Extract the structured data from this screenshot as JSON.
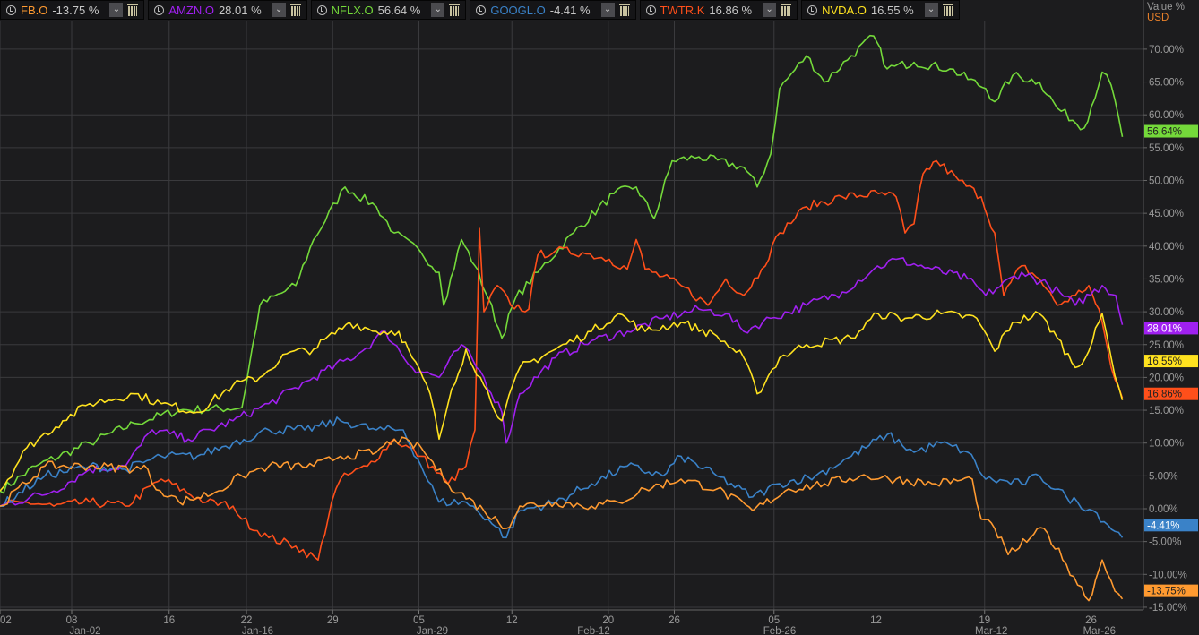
{
  "axis_header": {
    "value_label": "Value %",
    "currency": "USD"
  },
  "legend": [
    {
      "symbol": "FB.O",
      "value": "-13.75 %",
      "color": "#ff9a30"
    },
    {
      "symbol": "AMZN.O",
      "value": "28.01 %",
      "color": "#a020f0"
    },
    {
      "symbol": "NFLX.O",
      "value": "56.64 %",
      "color": "#74d93a"
    },
    {
      "symbol": "GOOGL.O",
      "value": "-4.41 %",
      "color": "#3a82c8"
    },
    {
      "symbol": "TWTR.K",
      "value": "16.86 %",
      "color": "#ff4f1a"
    },
    {
      "symbol": "NVDA.O",
      "value": "16.55 %",
      "color": "#ffe21f"
    }
  ],
  "chart_data": {
    "type": "line",
    "title": "",
    "ylabel": "Value %",
    "xlim": [
      0,
      101
    ],
    "ylim": [
      -15.5,
      73
    ],
    "grid": true,
    "y_ticks": [
      70,
      65,
      60,
      55,
      50,
      45,
      40,
      35,
      30,
      25,
      20,
      15,
      10,
      5,
      0,
      -5,
      -10,
      -15
    ],
    "y_tick_labels": [
      "70.00%",
      "65.00%",
      "60.00%",
      "55.00%",
      "50.00%",
      "45.00%",
      "40.00%",
      "35.00%",
      "30.00%",
      "25.00%",
      "20.00%",
      "15.00%",
      "10.00%",
      "5.00%",
      "0.00%",
      "-5.00%",
      "-10.00%",
      "-15.00%"
    ],
    "x_ticks": [
      {
        "x": 0,
        "label": "02"
      },
      {
        "x": 6.4,
        "label": "08"
      },
      {
        "x": 15.1,
        "label": "16"
      },
      {
        "x": 22,
        "label": "22"
      },
      {
        "x": 29.7,
        "label": "29"
      },
      {
        "x": 37.4,
        "label": "05"
      },
      {
        "x": 45.7,
        "label": "12"
      },
      {
        "x": 54.3,
        "label": "20"
      },
      {
        "x": 60.2,
        "label": "26"
      },
      {
        "x": 69.1,
        "label": "05"
      },
      {
        "x": 78.2,
        "label": "12"
      },
      {
        "x": 87.9,
        "label": "19"
      },
      {
        "x": 97.4,
        "label": "26"
      }
    ],
    "x_period_labels": [
      {
        "x": 7.6,
        "label": "Jan-02"
      },
      {
        "x": 23,
        "label": "Jan-16"
      },
      {
        "x": 38.6,
        "label": "Jan-29"
      },
      {
        "x": 53,
        "label": "Feb-12"
      },
      {
        "x": 69.6,
        "label": "Feb-26"
      },
      {
        "x": 88.5,
        "label": "Mar-12"
      },
      {
        "x": 99.6,
        "label": "Mar-26"
      }
    ],
    "series": [
      {
        "name": "NFLX.O",
        "color": "#74d93a",
        "last_label": "56.64%",
        "last": 56.64,
        "points": [
          [
            0,
            2.7
          ],
          [
            3.2,
            6.5
          ],
          [
            8,
            10
          ],
          [
            12,
            13
          ],
          [
            16,
            15
          ],
          [
            21.6,
            15.4
          ],
          [
            23.2,
            31
          ],
          [
            26.4,
            34
          ],
          [
            28,
            41
          ],
          [
            30.8,
            49
          ],
          [
            33.6,
            46
          ],
          [
            35.2,
            42
          ],
          [
            37.6,
            39
          ],
          [
            39.2,
            36
          ],
          [
            39.6,
            31
          ],
          [
            41.2,
            41
          ],
          [
            42.4,
            37
          ],
          [
            43.6,
            32
          ],
          [
            44.8,
            26
          ],
          [
            46,
            32
          ],
          [
            48,
            36
          ],
          [
            51.2,
            42
          ],
          [
            54.8,
            48
          ],
          [
            56.8,
            49
          ],
          [
            58.4,
            44.2
          ],
          [
            60,
            53
          ],
          [
            62.4,
            53.6
          ],
          [
            66.4,
            52
          ],
          [
            67.6,
            49
          ],
          [
            68.8,
            54
          ],
          [
            69.6,
            64
          ],
          [
            72,
            69
          ],
          [
            73.6,
            65
          ],
          [
            76,
            69
          ],
          [
            78,
            72
          ],
          [
            79.2,
            67
          ],
          [
            81.6,
            68
          ],
          [
            84.8,
            67
          ],
          [
            88,
            64
          ],
          [
            88.8,
            62
          ],
          [
            90.4,
            66
          ],
          [
            92.8,
            65
          ],
          [
            94.4,
            61
          ],
          [
            96.8,
            58
          ],
          [
            98.4,
            66.5
          ],
          [
            99.2,
            64.5
          ],
          [
            100.2,
            56.64
          ]
        ]
      },
      {
        "name": "TWTR.K",
        "color": "#ff4f1a",
        "last_label": "16.86%",
        "last": 16.86,
        "points": [
          [
            0,
            0.4
          ],
          [
            2.4,
            1
          ],
          [
            4.8,
            0.4
          ],
          [
            8,
            1
          ],
          [
            11.2,
            0.4
          ],
          [
            14.4,
            4.5
          ],
          [
            18.4,
            1
          ],
          [
            20.8,
            0.4
          ],
          [
            21.6,
            -1.6
          ],
          [
            24,
            -4.4
          ],
          [
            26.4,
            -5.7
          ],
          [
            28.4,
            -7.8
          ],
          [
            29.6,
            1
          ],
          [
            30.4,
            4.5
          ],
          [
            32.8,
            6.5
          ],
          [
            35.2,
            10.6
          ],
          [
            37.6,
            8
          ],
          [
            40,
            3.8
          ],
          [
            41.6,
            6.5
          ],
          [
            42.4,
            12
          ],
          [
            42.8,
            42.7
          ],
          [
            43.2,
            30
          ],
          [
            44.4,
            34
          ],
          [
            45.6,
            31
          ],
          [
            47.2,
            30.4
          ],
          [
            48,
            38.6
          ],
          [
            49.6,
            39.3
          ],
          [
            52,
            39
          ],
          [
            54.4,
            38
          ],
          [
            56,
            36.5
          ],
          [
            56.8,
            41
          ],
          [
            57.6,
            36.5
          ],
          [
            60.8,
            34
          ],
          [
            63.2,
            31
          ],
          [
            64.8,
            35
          ],
          [
            66.4,
            32.5
          ],
          [
            68,
            36.5
          ],
          [
            69.6,
            42
          ],
          [
            72,
            46
          ],
          [
            75.2,
            47.5
          ],
          [
            78.4,
            48
          ],
          [
            80,
            47.5
          ],
          [
            80.8,
            42
          ],
          [
            81.6,
            43.4
          ],
          [
            82.4,
            51
          ],
          [
            83.6,
            53
          ],
          [
            85.6,
            50
          ],
          [
            87.6,
            47.5
          ],
          [
            88.8,
            42
          ],
          [
            89.6,
            32.5
          ],
          [
            91.2,
            37
          ],
          [
            92.8,
            35
          ],
          [
            94.4,
            31
          ],
          [
            96,
            32.5
          ],
          [
            97.2,
            34
          ],
          [
            98.4,
            28.4
          ],
          [
            99.2,
            21.5
          ],
          [
            100.2,
            16.86
          ]
        ]
      },
      {
        "name": "AMZN.O",
        "color": "#a020f0",
        "last_label": "28.01%",
        "last": 28.01,
        "points": [
          [
            0,
            0.4
          ],
          [
            4.8,
            2.7
          ],
          [
            8,
            6
          ],
          [
            11.2,
            6.5
          ],
          [
            13.6,
            12
          ],
          [
            16.8,
            10.6
          ],
          [
            20.8,
            13.4
          ],
          [
            24,
            16
          ],
          [
            28,
            20
          ],
          [
            32,
            23.6
          ],
          [
            34.4,
            27
          ],
          [
            36.8,
            21.5
          ],
          [
            39.2,
            20
          ],
          [
            41.2,
            25
          ],
          [
            43.2,
            20
          ],
          [
            44.8,
            14.7
          ],
          [
            45.2,
            10
          ],
          [
            46.4,
            17.5
          ],
          [
            49.6,
            23
          ],
          [
            52.8,
            25.6
          ],
          [
            56,
            27
          ],
          [
            59.2,
            29
          ],
          [
            62.4,
            30.4
          ],
          [
            64.8,
            29.7
          ],
          [
            66.4,
            27
          ],
          [
            68.8,
            29
          ],
          [
            72,
            31
          ],
          [
            75.2,
            33
          ],
          [
            78,
            36.5
          ],
          [
            80,
            38
          ],
          [
            83.2,
            36.5
          ],
          [
            86.4,
            35
          ],
          [
            88,
            32.5
          ],
          [
            91.2,
            36
          ],
          [
            93.6,
            34
          ],
          [
            96,
            31
          ],
          [
            98.4,
            34
          ],
          [
            99.6,
            32.5
          ],
          [
            100.2,
            28.01
          ]
        ]
      },
      {
        "name": "NVDA.O",
        "color": "#ffe21f",
        "last_label": "16.55%",
        "last": 16.55,
        "points": [
          [
            0,
            2.7
          ],
          [
            2.4,
            9.3
          ],
          [
            5.6,
            13.4
          ],
          [
            8,
            16
          ],
          [
            12,
            17.5
          ],
          [
            14.4,
            16
          ],
          [
            17.6,
            14.7
          ],
          [
            20.8,
            18.8
          ],
          [
            23.2,
            20
          ],
          [
            25.6,
            23.6
          ],
          [
            28,
            24.3
          ],
          [
            31.2,
            28.4
          ],
          [
            33.6,
            27
          ],
          [
            35.6,
            27
          ],
          [
            36.8,
            23
          ],
          [
            38.4,
            17.5
          ],
          [
            39.2,
            10.6
          ],
          [
            40,
            16
          ],
          [
            41.6,
            24.3
          ],
          [
            43.2,
            18.8
          ],
          [
            44.8,
            13.4
          ],
          [
            46.4,
            21.5
          ],
          [
            49.6,
            24.3
          ],
          [
            52.8,
            27
          ],
          [
            55.2,
            29.7
          ],
          [
            57.6,
            27
          ],
          [
            60.8,
            28.4
          ],
          [
            64,
            26.3
          ],
          [
            66.4,
            23
          ],
          [
            67.6,
            17.5
          ],
          [
            69.6,
            23
          ],
          [
            72,
            25
          ],
          [
            76,
            26
          ],
          [
            78.4,
            29.7
          ],
          [
            80.8,
            29
          ],
          [
            84,
            29.7
          ],
          [
            87.2,
            29
          ],
          [
            88.8,
            24
          ],
          [
            90.4,
            28.4
          ],
          [
            92.8,
            29.7
          ],
          [
            94.4,
            26
          ],
          [
            96,
            21.5
          ],
          [
            97.2,
            24
          ],
          [
            98.4,
            29.7
          ],
          [
            99.2,
            23
          ],
          [
            100.2,
            16.55
          ]
        ]
      },
      {
        "name": "GOOGL.O",
        "color": "#3a82c8",
        "last_label": "-4.41%",
        "last": -4.41,
        "points": [
          [
            0,
            0.4
          ],
          [
            4,
            5
          ],
          [
            8,
            6.5
          ],
          [
            11.2,
            6
          ],
          [
            14.4,
            8
          ],
          [
            17.6,
            8
          ],
          [
            20.8,
            10
          ],
          [
            24,
            12
          ],
          [
            27.2,
            12
          ],
          [
            30.4,
            13.4
          ],
          [
            33.6,
            12
          ],
          [
            36,
            12
          ],
          [
            37.6,
            6.5
          ],
          [
            39.2,
            1
          ],
          [
            41.6,
            1
          ],
          [
            43.6,
            -1.6
          ],
          [
            45.2,
            -4.4
          ],
          [
            46.4,
            -0.3
          ],
          [
            49.6,
            1
          ],
          [
            52.8,
            3.8
          ],
          [
            56,
            6.5
          ],
          [
            59.2,
            5
          ],
          [
            60.8,
            8
          ],
          [
            64,
            5
          ],
          [
            67.2,
            1.8
          ],
          [
            69.6,
            3.8
          ],
          [
            72.8,
            5
          ],
          [
            76,
            8
          ],
          [
            79.2,
            11.3
          ],
          [
            81.6,
            8.6
          ],
          [
            84,
            10
          ],
          [
            86.4,
            8.6
          ],
          [
            88,
            4.5
          ],
          [
            91.2,
            3.8
          ],
          [
            92.8,
            5
          ],
          [
            95.2,
            1.8
          ],
          [
            97.6,
            -0.3
          ],
          [
            100.2,
            -4.41
          ]
        ]
      },
      {
        "name": "FB.O",
        "color": "#ff9a30",
        "last_label": "-13.75%",
        "last": -13.75,
        "points": [
          [
            0,
            0.4
          ],
          [
            4,
            6.5
          ],
          [
            8,
            6.5
          ],
          [
            13.2,
            6
          ],
          [
            13.6,
            3.8
          ],
          [
            16,
            1
          ],
          [
            19.2,
            2.5
          ],
          [
            21.6,
            5
          ],
          [
            24,
            6.5
          ],
          [
            28,
            6.5
          ],
          [
            30.4,
            8
          ],
          [
            33.6,
            8.6
          ],
          [
            35.2,
            10.6
          ],
          [
            37.6,
            9.3
          ],
          [
            40,
            3.8
          ],
          [
            43.2,
            -0.3
          ],
          [
            45.2,
            -3
          ],
          [
            46.4,
            0.4
          ],
          [
            49.6,
            1
          ],
          [
            52.8,
            0.4
          ],
          [
            55.2,
            1
          ],
          [
            57.6,
            3
          ],
          [
            60.8,
            4.5
          ],
          [
            64,
            3
          ],
          [
            67.2,
            -0.3
          ],
          [
            70.4,
            3
          ],
          [
            73.6,
            3.8
          ],
          [
            76.8,
            5
          ],
          [
            80,
            4.5
          ],
          [
            83.2,
            3.8
          ],
          [
            86.8,
            4.5
          ],
          [
            87.6,
            -1.6
          ],
          [
            88.8,
            -3
          ],
          [
            90,
            -7
          ],
          [
            92,
            -4.4
          ],
          [
            93.2,
            -3
          ],
          [
            95.2,
            -8.5
          ],
          [
            97.2,
            -14
          ],
          [
            98.4,
            -7.8
          ],
          [
            99.2,
            -11
          ],
          [
            100.2,
            -13.75
          ]
        ]
      }
    ]
  }
}
